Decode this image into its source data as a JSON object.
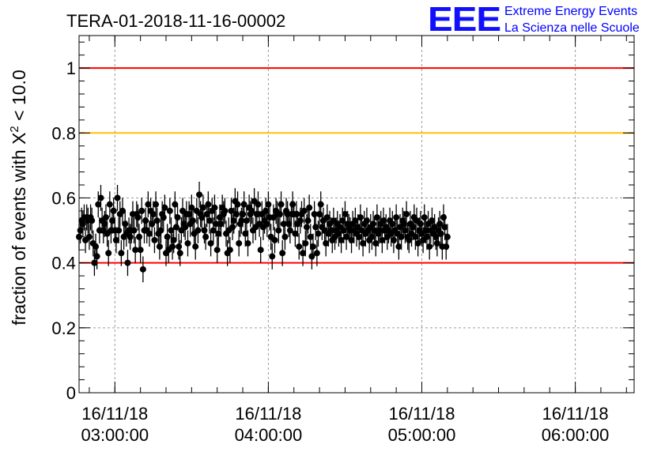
{
  "title": "TERA-01-2018-11-16-00002",
  "logo": {
    "mark": "EEE",
    "line1": "Extreme Energy Events",
    "line2": "La Scienza nelle Scuole",
    "color": "#1010ff"
  },
  "chart_data": {
    "type": "scatter",
    "title": "TERA-01-2018-11-16-00002",
    "ylabel_prefix": "fraction of events with X",
    "ylabel_superscript": "2",
    "ylabel_suffix": " < 10.0",
    "xlabel": "",
    "x_axis": "time",
    "xlim": [
      "2018-11-16 02:46:00",
      "2018-11-16 06:23:00"
    ],
    "ylim": [
      0,
      1.1
    ],
    "grid": true,
    "y_ticks": [
      {
        "value": 0,
        "label": "0"
      },
      {
        "value": 0.2,
        "label": "0.2"
      },
      {
        "value": 0.4,
        "label": "0.4"
      },
      {
        "value": 0.6,
        "label": "0.6"
      },
      {
        "value": 0.8,
        "label": "0.8"
      },
      {
        "value": 1.0,
        "label": "1"
      }
    ],
    "x_ticks": [
      {
        "value": "2018-11-16 03:00:00",
        "date": "16/11/18",
        "time": "03:00:00"
      },
      {
        "value": "2018-11-16 04:00:00",
        "date": "16/11/18",
        "time": "04:00:00"
      },
      {
        "value": "2018-11-16 05:00:00",
        "date": "16/11/18",
        "time": "05:00:00"
      },
      {
        "value": "2018-11-16 06:00:00",
        "date": "16/11/18",
        "time": "06:00:00"
      }
    ],
    "reference_lines": [
      {
        "y": 1.0,
        "color": "#ff0000"
      },
      {
        "y": 0.8,
        "color": "#ffc000"
      },
      {
        "y": 0.4,
        "color": "#ff0000"
      }
    ],
    "marker_color": "#000000",
    "series": [
      {
        "x_start": "2018-11-16 02:46:00",
        "x_step_seconds": 30,
        "error": 0.04,
        "y": [
          0.48,
          0.5,
          0.53,
          0.52,
          0.54,
          0.47,
          0.54,
          0.53,
          0.48,
          0.54,
          0.53,
          0.46,
          0.4,
          0.45,
          0.42,
          0.58,
          0.5,
          0.6,
          0.53,
          0.5,
          0.52,
          0.54,
          0.49,
          0.43,
          0.58,
          0.5,
          0.53,
          0.56,
          0.5,
          0.47,
          0.6,
          0.5,
          0.55,
          0.43,
          0.56,
          0.48,
          0.52,
          0.49,
          0.4,
          0.5,
          0.48,
          0.5,
          0.55,
          0.5,
          0.44,
          0.55,
          0.54,
          0.48,
          0.44,
          0.56,
          0.38,
          0.5,
          0.53,
          0.5,
          0.58,
          0.49,
          0.56,
          0.52,
          0.55,
          0.47,
          0.58,
          0.53,
          0.49,
          0.45,
          0.5,
          0.55,
          0.54,
          0.57,
          0.43,
          0.48,
          0.44,
          0.56,
          0.5,
          0.45,
          0.47,
          0.58,
          0.51,
          0.54,
          0.45,
          0.43,
          0.5,
          0.56,
          0.52,
          0.51,
          0.55,
          0.46,
          0.55,
          0.52,
          0.57,
          0.53,
          0.49,
          0.45,
          0.56,
          0.5,
          0.61,
          0.55,
          0.54,
          0.57,
          0.5,
          0.48,
          0.55,
          0.58,
          0.53,
          0.46,
          0.56,
          0.5,
          0.57,
          0.52,
          0.44,
          0.49,
          0.54,
          0.52,
          0.57,
          0.55,
          0.56,
          0.49,
          0.43,
          0.5,
          0.44,
          0.56,
          0.51,
          0.53,
          0.59,
          0.55,
          0.58,
          0.46,
          0.52,
          0.53,
          0.55,
          0.58,
          0.49,
          0.53,
          0.46,
          0.57,
          0.55,
          0.56,
          0.5,
          0.59,
          0.51,
          0.55,
          0.58,
          0.52,
          0.44,
          0.55,
          0.51,
          0.53,
          0.56,
          0.52,
          0.58,
          0.54,
          0.48,
          0.42,
          0.54,
          0.47,
          0.56,
          0.55,
          0.5,
          0.55,
          0.58,
          0.43,
          0.52,
          0.48,
          0.56,
          0.55,
          0.52,
          0.5,
          0.55,
          0.58,
          0.55,
          0.49,
          0.55,
          0.52,
          0.45,
          0.53,
          0.55,
          0.43,
          0.56,
          0.46,
          0.51,
          0.53,
          0.57,
          0.48,
          0.42,
          0.45,
          0.55,
          0.51,
          0.43,
          0.49,
          0.55,
          0.58,
          0.51,
          0.53,
          0.5,
          0.46,
          0.54,
          0.49,
          0.52,
          0.5,
          0.47,
          0.53,
          0.48,
          0.5,
          0.52,
          0.49,
          0.51,
          0.47,
          0.53,
          0.5,
          0.55,
          0.48,
          0.52,
          0.51,
          0.5,
          0.47,
          0.52,
          0.5,
          0.53,
          0.49,
          0.51,
          0.48,
          0.54,
          0.5,
          0.46,
          0.52,
          0.49,
          0.53,
          0.5,
          0.47,
          0.51,
          0.48,
          0.52,
          0.5,
          0.46,
          0.54,
          0.49,
          0.5,
          0.52,
          0.47,
          0.53,
          0.5,
          0.51,
          0.48,
          0.5,
          0.53,
          0.49,
          0.52,
          0.47,
          0.5,
          0.54,
          0.49,
          0.45,
          0.51,
          0.48,
          0.53,
          0.52,
          0.5,
          0.55,
          0.48,
          0.47,
          0.52,
          0.49,
          0.51,
          0.54,
          0.48,
          0.53,
          0.46,
          0.5,
          0.52,
          0.49,
          0.47,
          0.54,
          0.5,
          0.48,
          0.52,
          0.45,
          0.5,
          0.53,
          0.49,
          0.51,
          0.48,
          0.46,
          0.5,
          0.52,
          0.49,
          0.45,
          0.54,
          0.51,
          0.45,
          0.48
        ]
      }
    ]
  }
}
